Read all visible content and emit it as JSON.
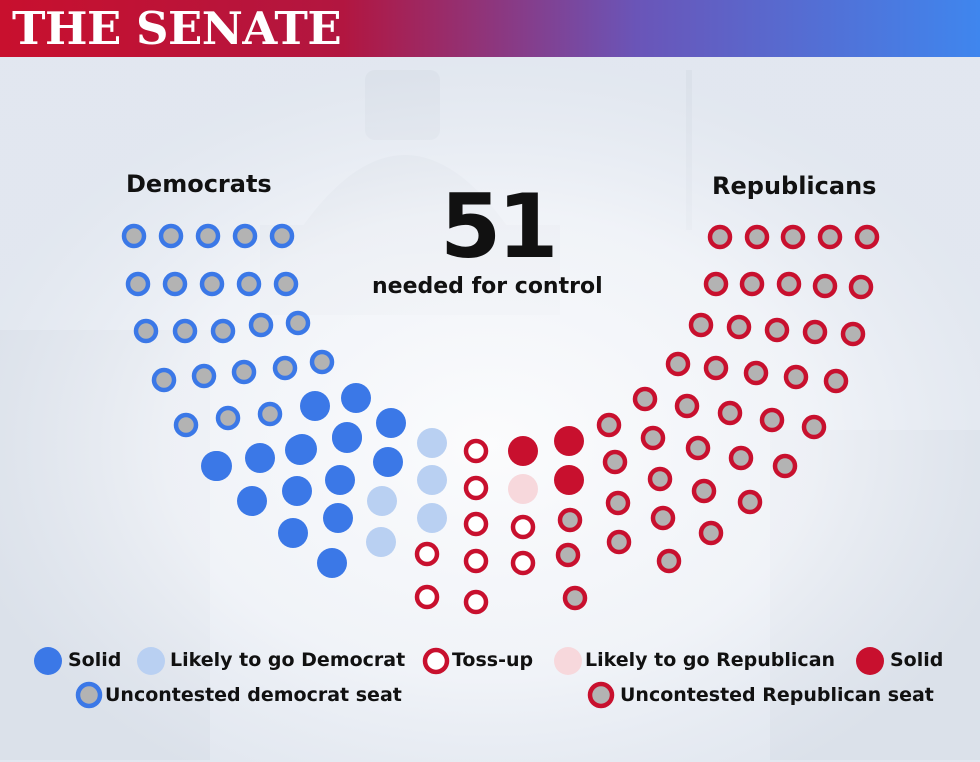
{
  "header": {
    "title": "THE SENATE"
  },
  "parties": {
    "left": "Democrats",
    "right": "Republicans"
  },
  "threshold": {
    "value": "51",
    "caption": "needed for control"
  },
  "colors": {
    "dem_solid": "#3b78e7",
    "dem_likely": "#b9d0f2",
    "dem_ring": "#3b78e7",
    "rep_ring": "#c8102e",
    "rep_solid": "#c8102e",
    "rep_likely": "#f7d8dc",
    "uncontested_fill": "#b3b3b3",
    "tossup_fill": "#ffffff"
  },
  "seat_categories": [
    {
      "key": "dem_uncontested",
      "label": "Uncontested democrat seat",
      "count": 23
    },
    {
      "key": "dem_solid",
      "label": "Solid",
      "count": 17
    },
    {
      "key": "dem_likely",
      "label": "Likely to go Democrat",
      "count": 5
    },
    {
      "key": "tossup",
      "label": "Toss-up",
      "count": 9
    },
    {
      "key": "rep_likely",
      "label": "Likely to go Republican",
      "count": 1
    },
    {
      "key": "rep_solid",
      "label": "Solid",
      "count": 3
    },
    {
      "key": "rep_uncontested",
      "label": "Uncontested Republican seat",
      "count": 42
    }
  ],
  "legend": {
    "dem_solid": "Solid",
    "dem_likely": "Likely to go Democrat",
    "tossup": "Toss-up",
    "rep_likely": "Likely to go Republican",
    "rep_solid": "Solid",
    "dem_uncontested": "Uncontested democrat seat",
    "rep_uncontested": "Uncontested Republican seat"
  }
}
